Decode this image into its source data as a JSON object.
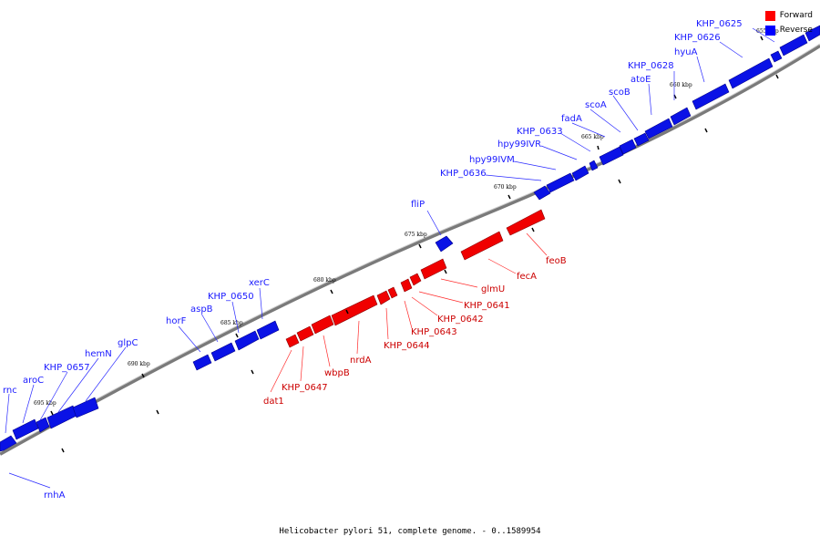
{
  "legend": {
    "forward": {
      "label": "Forward",
      "color": "#ff0000"
    },
    "reverse": {
      "label": "Reverse",
      "color": "#0000ff"
    }
  },
  "caption": "Helicobacter pylori 51, complete genome. - 0..1589954",
  "tick_labels": [
    "655 kbp",
    "660 kbp",
    "665 kbp",
    "670 kbp",
    "675 kbp",
    "680 kbp",
    "685 kbp",
    "690 kbp",
    "695 kbp"
  ],
  "genes_reverse": [
    "KHP_0625",
    "KHP_0626",
    "hyuA",
    "KHP_0628",
    "atoE",
    "scoB",
    "scoA",
    "fadA",
    "KHP_0633",
    "hpy99IVR",
    "hpy99IVM",
    "KHP_0636",
    "fliP",
    "xerC",
    "KHP_0650",
    "aspB",
    "horF",
    "glpC",
    "hemN",
    "KHP_0657",
    "aroC",
    "rnc",
    "rnhA"
  ],
  "genes_forward": [
    "feoB",
    "fecA",
    "glmU",
    "KHP_0641",
    "KHP_0642",
    "KHP_0643",
    "KHP_0644",
    "nrdA",
    "wbpB",
    "KHP_0647",
    "dat1"
  ]
}
